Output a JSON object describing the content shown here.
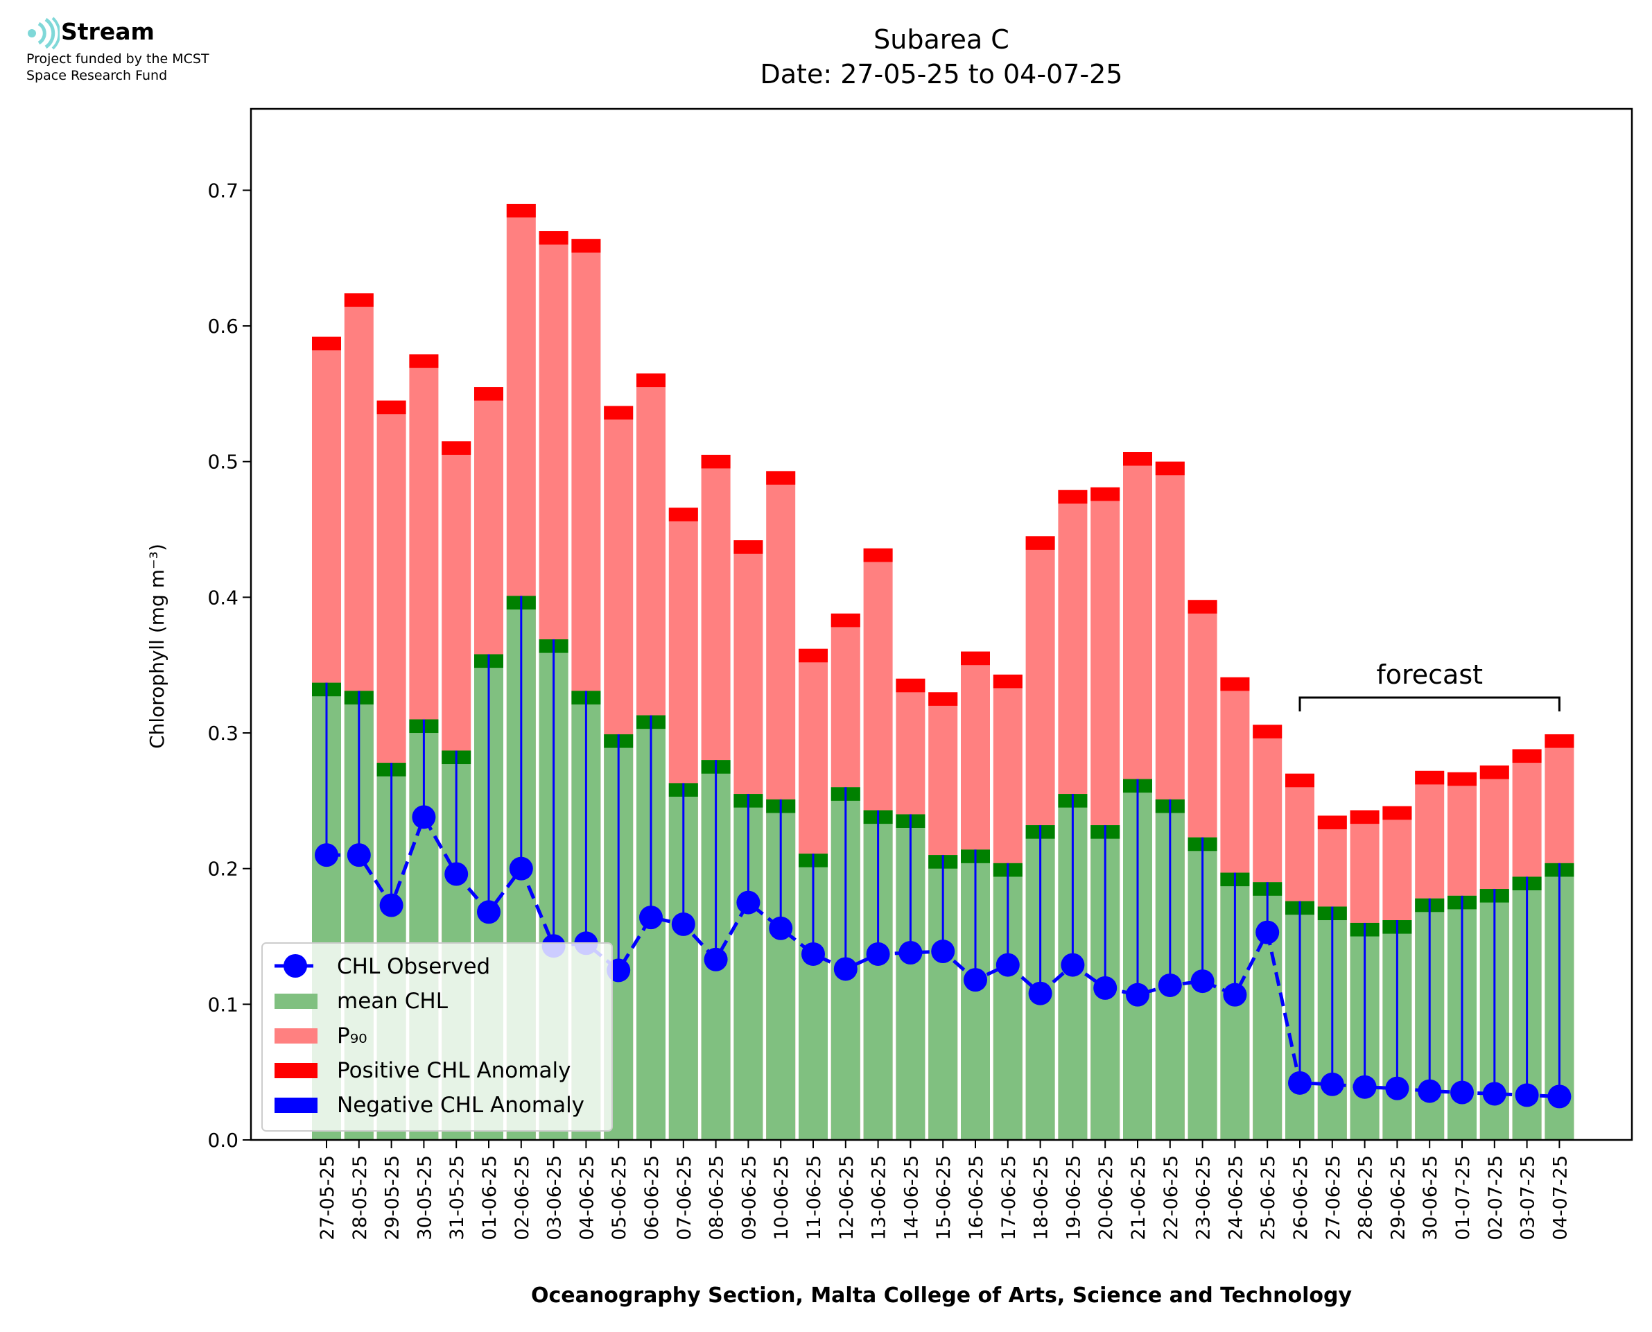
{
  "logo": {
    "name": "Stream",
    "line1": "Project funded by the MCST",
    "line2": "Space Research Fund"
  },
  "chart_data": {
    "type": "bar",
    "title": "Subarea C",
    "subtitle": "Date: 27-05-25 to 04-07-25",
    "xlabel": "Oceanography Section, Malta College of Arts, Science and Technology",
    "ylabel": "Chlorophyll (mg m⁻³)",
    "ylim": [
      0,
      0.76
    ],
    "yticks": [
      "0.0",
      "0.1",
      "0.2",
      "0.3",
      "0.4",
      "0.5",
      "0.6",
      "0.7"
    ],
    "grid": false,
    "legend_position": "lower-left",
    "annotation": "forecast",
    "forecast_start": "26-06-25",
    "forecast_end": "04-07-25",
    "categories": [
      "27-05-25",
      "28-05-25",
      "29-05-25",
      "30-05-25",
      "31-05-25",
      "01-06-25",
      "02-06-25",
      "03-06-25",
      "04-06-25",
      "05-06-25",
      "06-06-25",
      "07-06-25",
      "08-06-25",
      "09-06-25",
      "10-06-25",
      "11-06-25",
      "12-06-25",
      "13-06-25",
      "14-06-25",
      "15-06-25",
      "16-06-25",
      "17-06-25",
      "18-06-25",
      "19-06-25",
      "20-06-25",
      "21-06-25",
      "22-06-25",
      "23-06-25",
      "24-06-25",
      "25-06-25",
      "26-06-25",
      "27-06-25",
      "28-06-25",
      "29-06-25",
      "30-06-25",
      "01-07-25",
      "02-07-25",
      "03-07-25",
      "04-07-25"
    ],
    "series": [
      {
        "name": "CHL Observed",
        "kind": "line",
        "color": "#0000ff",
        "values": [
          0.21,
          0.21,
          0.173,
          0.238,
          0.196,
          0.168,
          0.2,
          0.143,
          0.145,
          0.125,
          0.164,
          0.159,
          0.133,
          0.175,
          0.156,
          0.137,
          0.126,
          0.137,
          0.138,
          0.139,
          0.118,
          0.129,
          0.108,
          0.129,
          0.112,
          0.107,
          0.114,
          0.117,
          0.107,
          0.153,
          0.042,
          0.041,
          0.039,
          0.038,
          0.036,
          0.035,
          0.034,
          0.033,
          0.032
        ]
      },
      {
        "name": "mean CHL",
        "kind": "bar",
        "color": "#80c080",
        "values": [
          0.337,
          0.331,
          0.278,
          0.31,
          0.287,
          0.358,
          0.401,
          0.369,
          0.331,
          0.299,
          0.313,
          0.263,
          0.28,
          0.255,
          0.251,
          0.211,
          0.26,
          0.243,
          0.24,
          0.21,
          0.214,
          0.204,
          0.232,
          0.255,
          0.232,
          0.266,
          0.251,
          0.223,
          0.197,
          0.19,
          0.176,
          0.172,
          0.16,
          0.162,
          0.178,
          0.18,
          0.185,
          0.194,
          0.204
        ]
      },
      {
        "name": "P₉₀",
        "kind": "bar",
        "color": "#ff8080",
        "values": [
          0.592,
          0.624,
          0.545,
          0.579,
          0.515,
          0.555,
          0.69,
          0.67,
          0.664,
          0.541,
          0.565,
          0.466,
          0.505,
          0.442,
          0.493,
          0.362,
          0.388,
          0.436,
          0.34,
          0.33,
          0.36,
          0.343,
          0.445,
          0.479,
          0.481,
          0.507,
          0.5,
          0.398,
          0.341,
          0.306,
          0.27,
          0.239,
          0.243,
          0.246,
          0.272,
          0.271,
          0.276,
          0.288,
          0.299
        ]
      },
      {
        "name": "Positive CHL Anomaly",
        "kind": "bar",
        "color": "#ff0000"
      },
      {
        "name": "Negative CHL Anomaly",
        "kind": "bar",
        "color": "#0000ff"
      }
    ],
    "anomaly_band_color": "#008000",
    "anomaly_band_height": 0.01
  }
}
